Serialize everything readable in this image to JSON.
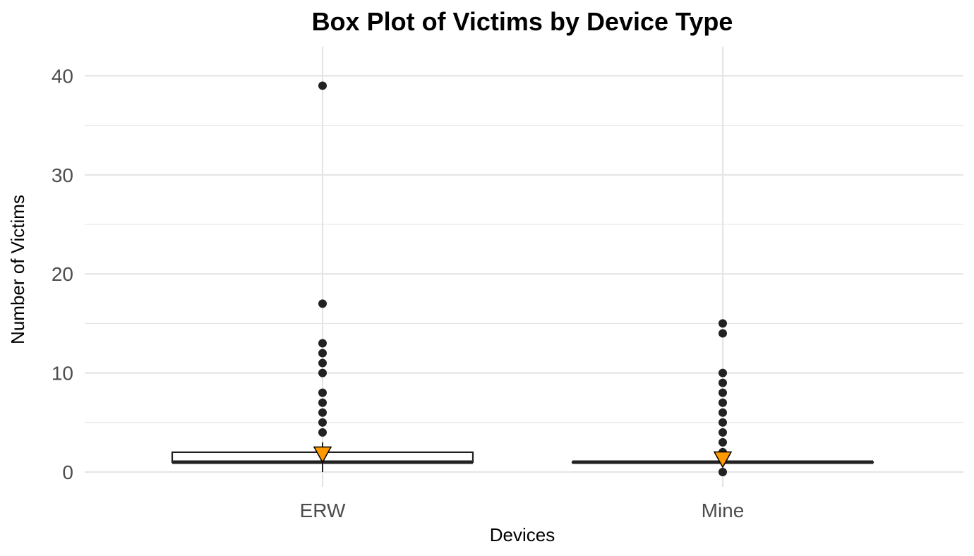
{
  "chart_data": {
    "type": "box",
    "title": "Box Plot of Victims by Device Type",
    "xlabel": "Devices",
    "ylabel": "Number of Victims",
    "ylim": [
      -2,
      43
    ],
    "yticks": [
      0,
      10,
      20,
      30,
      40
    ],
    "categories": [
      "ERW",
      "Mine"
    ],
    "boxes": [
      {
        "category": "ERW",
        "q1": 1,
        "median": 1,
        "q3": 2,
        "whisker_low": 0,
        "whisker_high": 3,
        "mean": 1.8,
        "outliers": [
          4,
          5,
          6,
          7,
          8,
          10,
          11,
          12,
          13,
          17,
          39
        ]
      },
      {
        "category": "Mine",
        "q1": 1,
        "median": 1,
        "q3": 1,
        "whisker_low": 1,
        "whisker_high": 1,
        "mean": 1.3,
        "outliers": [
          0,
          2,
          3,
          4,
          5,
          6,
          7,
          8,
          9,
          10,
          14,
          15
        ]
      }
    ],
    "grid": true,
    "legend": "none",
    "colors": {
      "mean_marker": "#ff9900",
      "box_line": "#222222",
      "point": "#222222",
      "grid": "#e5e5e5"
    }
  }
}
